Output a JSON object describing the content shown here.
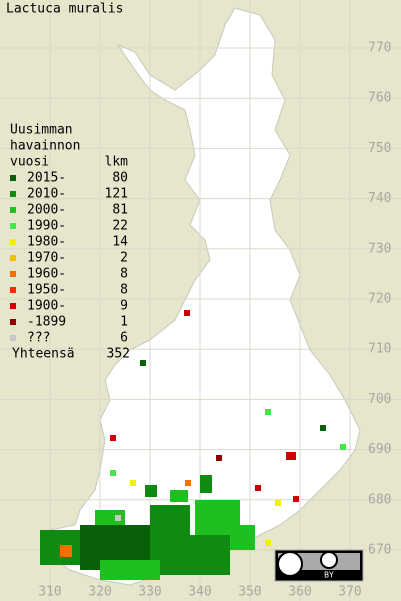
{
  "map": {
    "title": "Lactuca muralis",
    "legend": {
      "header": [
        "Uusimman",
        "havainnon",
        "vuosi"
      ],
      "count_header": "lkm",
      "items": [
        {
          "label": "2015-",
          "count": 80,
          "color": "#0a5f0a"
        },
        {
          "label": "2010-",
          "count": 121,
          "color": "#108a10"
        },
        {
          "label": "2000-",
          "count": 81,
          "color": "#1fbf1f"
        },
        {
          "label": "1990-",
          "count": 22,
          "color": "#44e844"
        },
        {
          "label": "1980-",
          "count": 14,
          "color": "#f0f000"
        },
        {
          "label": "1970-",
          "count": 2,
          "color": "#f0c000"
        },
        {
          "label": "1960-",
          "count": 8,
          "color": "#f07000"
        },
        {
          "label": "1950-",
          "count": 8,
          "color": "#f03000"
        },
        {
          "label": "1900-",
          "count": 9,
          "color": "#d00000"
        },
        {
          "label": "-1899",
          "count": 1,
          "color": "#900000"
        },
        {
          "label": "???",
          "count": 6,
          "color": "#c8c8c8"
        }
      ],
      "total_label": "Yhteensä",
      "total": 352
    },
    "yticks": [
      770,
      760,
      750,
      740,
      730,
      720,
      710,
      700,
      690,
      680,
      670
    ],
    "xticks": [
      310,
      320,
      330,
      340,
      350,
      360,
      370
    ],
    "license": "BY"
  }
}
